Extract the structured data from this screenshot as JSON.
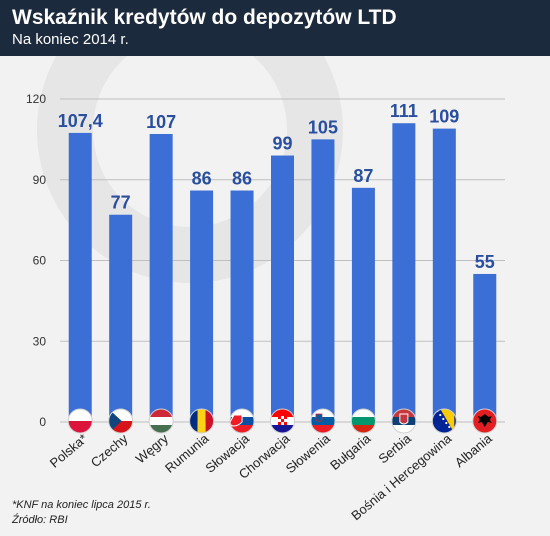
{
  "header": {
    "title": "Wskaźnik kredytów do depozytów LTD",
    "subtitle": "Na koniec 2014 r."
  },
  "footer": {
    "note": "*KNF na koniec lipca 2015 r.",
    "source": "Źródło: RBI"
  },
  "colors": {
    "bar": "#3b6fd6",
    "value_label": "#2a4fa0",
    "header_bg": "#1c2a3e",
    "background": "#f2f2f2",
    "grid": "#bfbfbf"
  },
  "chart_data": {
    "type": "bar",
    "title": "Wskaźnik kredytów do depozytów LTD",
    "subtitle": "Na koniec 2014 r.",
    "categories": [
      "Polska*",
      "Czechy",
      "Węgry",
      "Rumunia",
      "Słowacja",
      "Chorwacja",
      "Słowenia",
      "Bułgaria",
      "Serbia",
      "Bośnia i Hercegowina",
      "Albania"
    ],
    "values": [
      107.4,
      77,
      107,
      86,
      86,
      99,
      105,
      87,
      111,
      109,
      55
    ],
    "value_labels": [
      "107,4",
      "77",
      "107",
      "86",
      "86",
      "99",
      "105",
      "87",
      "111",
      "109",
      "55"
    ],
    "flags": [
      "flag-poland",
      "flag-czechia",
      "flag-hungary",
      "flag-romania",
      "flag-slovakia",
      "flag-croatia",
      "flag-slovenia",
      "flag-bulgaria",
      "flag-serbia",
      "flag-bosnia",
      "flag-albania"
    ],
    "ylim": [
      0,
      120
    ],
    "yticks": [
      0,
      30,
      60,
      90,
      120
    ],
    "grid": true,
    "xlabel": "",
    "ylabel": ""
  }
}
